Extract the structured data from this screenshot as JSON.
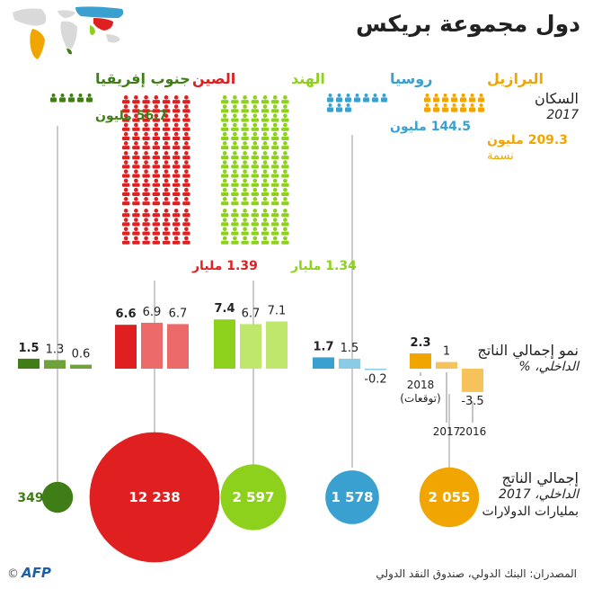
{
  "title": "دول مجموعة بريكس",
  "row_labels": {
    "population": {
      "main": "السكان",
      "sub": "2017"
    },
    "gdp_growth": {
      "line1": "نمو إجمالي الناتج",
      "line2": "الداخلي، %"
    },
    "gdp": {
      "line1": "إجمالي الناتج",
      "line2": "الداخلي، 2017",
      "line3": "بمليارات الدولارات"
    }
  },
  "brazil_extra": "نسمة",
  "growth_years": {
    "y2018": "2018",
    "y2018_note": "(توقعات)",
    "y2017": "2017",
    "y2016": "2016"
  },
  "source": "المصدران: البنك الدولي، صندوق النقد الدولي",
  "logo": {
    "copyright": "©",
    "brand": "AFP"
  },
  "colors": {
    "brazil": "#f0a500",
    "russia": "#3aa0cf",
    "india": "#8ed11c",
    "china": "#e02020",
    "south_africa": "#3f7d16",
    "brazil_light": "#f6c25c",
    "russia_light": "#8ccbe6",
    "india_light": "#bfe76c",
    "china_light": "#ec6a6a",
    "south_africa_light": "#6fa23b"
  },
  "chart_data": {
    "type": "infographic",
    "countries": [
      {
        "key": "brazil",
        "name": "البرازيل",
        "population_label": "209.3 مليون",
        "population_millions": 209.3,
        "growth": [
          2.3,
          1.0,
          -3.5
        ],
        "growth_labels": [
          "2.3",
          "1",
          "-3.5"
        ],
        "gdp": 2055,
        "gdp_label": "2 055"
      },
      {
        "key": "russia",
        "name": "روسيا",
        "population_label": "144.5 مليون",
        "population_millions": 144.5,
        "growth": [
          1.7,
          1.5,
          -0.2
        ],
        "growth_labels": [
          "1.7",
          "1.5",
          "-0.2"
        ],
        "gdp": 1578,
        "gdp_label": "1 578"
      },
      {
        "key": "india",
        "name": "الهند",
        "population_label": "1.34 مليار",
        "population_millions": 1340,
        "growth": [
          7.4,
          6.7,
          7.1
        ],
        "growth_labels": [
          "7.4",
          "6.7",
          "7.1"
        ],
        "gdp": 2597,
        "gdp_label": "2 597"
      },
      {
        "key": "china",
        "name": "الصين",
        "population_label": "1.39 مليار",
        "population_millions": 1390,
        "growth": [
          6.6,
          6.9,
          6.7
        ],
        "growth_labels": [
          "6.6",
          "6.9",
          "6.7"
        ],
        "gdp": 12238,
        "gdp_label": "12 238"
      },
      {
        "key": "south_africa",
        "name": "جنوب إفريقيا",
        "population_label": "56.7 مليون",
        "population_millions": 56.7,
        "growth": [
          1.5,
          1.3,
          0.6
        ],
        "growth_labels": [
          "1.5",
          "1.3",
          "0.6"
        ],
        "gdp": 349,
        "gdp_label": "349"
      }
    ]
  }
}
